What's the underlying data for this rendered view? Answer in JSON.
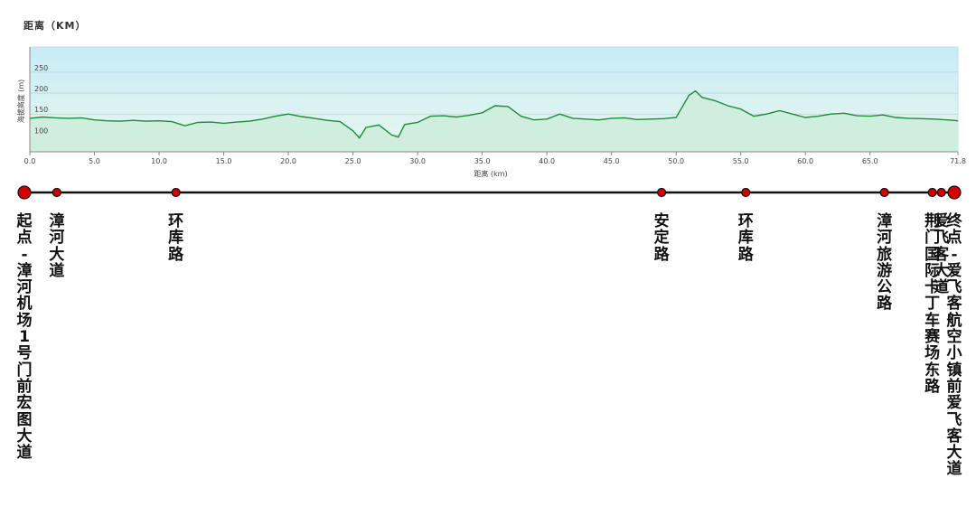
{
  "title": "距离（KM）",
  "chart_data": {
    "type": "area",
    "xlabel": "距离 (km)",
    "ylabel": "海拔高度 (m)",
    "xlim": [
      0,
      71.8
    ],
    "ylim": [
      60,
      310
    ],
    "x_ticks": [
      "0.0",
      "5.0",
      "10.0",
      "15.0",
      "20.0",
      "25.0",
      "30.0",
      "35.0",
      "40.0",
      "45.0",
      "50.0",
      "55.0",
      "60.0",
      "65.0",
      "71.8"
    ],
    "y_ticks": [
      "100",
      "150",
      "200",
      "250"
    ],
    "grid": true,
    "fill_color": "#cfeedd",
    "line_color": "#1f8a3a",
    "x": [
      0,
      1,
      2,
      3,
      4,
      5,
      6,
      7,
      8,
      9,
      10,
      11,
      12,
      13,
      14,
      15,
      16,
      17,
      18,
      19,
      20,
      21,
      22,
      23,
      24,
      25,
      25.5,
      26,
      27,
      28,
      28.5,
      29,
      30,
      31,
      32,
      33,
      34,
      35,
      36,
      37,
      38,
      39,
      40,
      41,
      42,
      43,
      44,
      45,
      46,
      47,
      48,
      49,
      50,
      51,
      51.5,
      52,
      53,
      54,
      55,
      56,
      57,
      58,
      59,
      60,
      61,
      62,
      63,
      64,
      65,
      66,
      67,
      68,
      69,
      70,
      71,
      71.8
    ],
    "y": [
      140,
      143,
      141,
      140,
      141,
      136,
      134,
      133,
      135,
      133,
      134,
      132,
      122,
      130,
      131,
      128,
      131,
      133,
      138,
      145,
      150,
      144,
      140,
      135,
      132,
      110,
      93,
      118,
      124,
      100,
      95,
      125,
      130,
      145,
      146,
      143,
      147,
      153,
      170,
      168,
      145,
      136,
      138,
      150,
      140,
      138,
      136,
      140,
      141,
      137,
      138,
      139,
      142,
      195,
      205,
      190,
      182,
      170,
      162,
      145,
      150,
      158,
      150,
      142,
      145,
      150,
      152,
      146,
      145,
      148,
      142,
      140,
      139,
      138,
      136,
      134
    ],
    "route_distance": "71.8"
  },
  "route": {
    "line_color": "#111111",
    "marker_color": "#d40000",
    "stops": [
      {
        "km": 0,
        "label": "起点-漳河机场1号门前宏图大道",
        "major": true
      },
      {
        "km": 2.5,
        "label": "漳河大道",
        "major": false
      },
      {
        "km": 11.7,
        "label": "环库路",
        "major": false
      },
      {
        "km": 49.2,
        "label": "安定路",
        "major": false
      },
      {
        "km": 55.7,
        "label": "环库路",
        "major": false
      },
      {
        "km": 66.4,
        "label": "漳河旅游公路",
        "major": false
      },
      {
        "km": 70.1,
        "label": "荆门国际卡丁车赛场东路",
        "major": false
      },
      {
        "km": 70.8,
        "label": "爱飞客大道",
        "major": false
      },
      {
        "km": 71.8,
        "label": "终点-爱飞客航空小镇前爱飞客大道",
        "major": true
      }
    ]
  }
}
